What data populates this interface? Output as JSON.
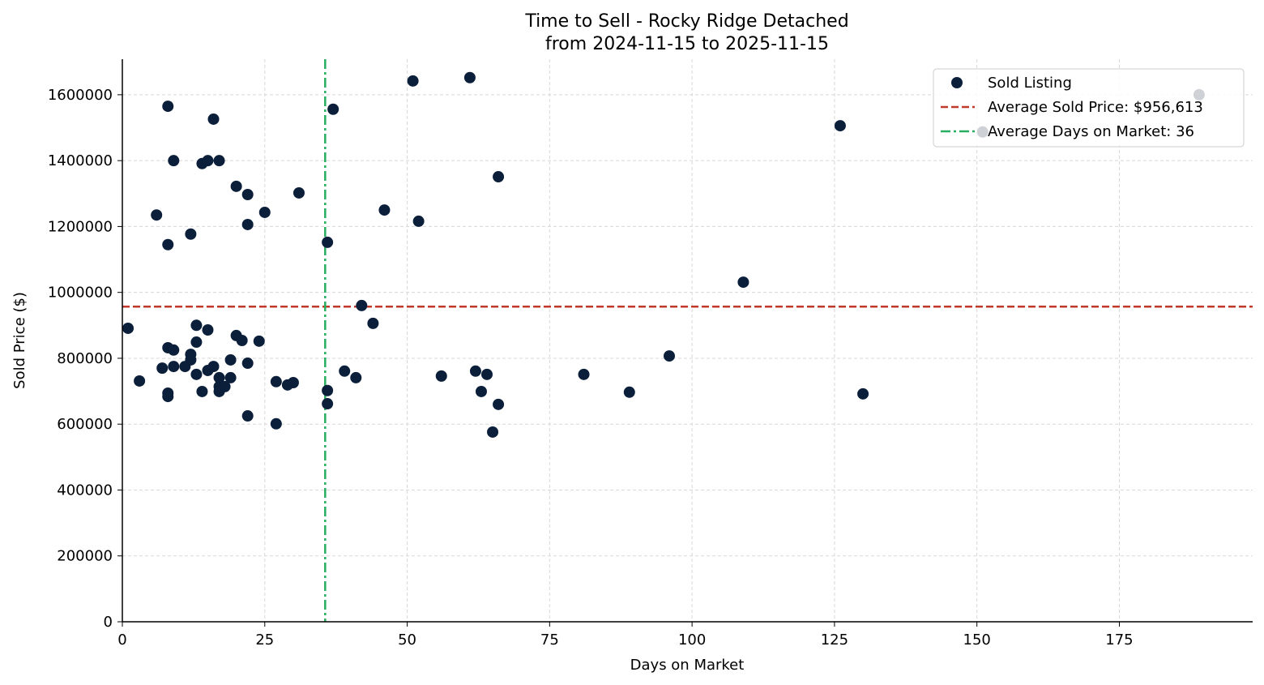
{
  "chart_data": {
    "type": "scatter",
    "title": "Time to Sell - Rocky Ridge Detached",
    "subtitle": "from 2024-11-15 to 2025-11-15",
    "xlabel": "Days on Market",
    "ylabel": "Sold Price ($)",
    "xlim": [
      0,
      198.4
    ],
    "ylim": [
      0,
      1708000
    ],
    "xticks": [
      0,
      25,
      50,
      75,
      100,
      125,
      150,
      175
    ],
    "yticks": [
      0,
      200000,
      400000,
      600000,
      800000,
      1000000,
      1200000,
      1400000,
      1600000
    ],
    "grid": true,
    "legend_position": "top-right",
    "colors": {
      "points": "#0b1f3a",
      "avg_price": "#c0392b",
      "avg_days": "#27ae60"
    },
    "series": [
      {
        "name": "Sold Listing",
        "points": [
          [
            1,
            891000
          ],
          [
            3,
            731000
          ],
          [
            6,
            1235000
          ],
          [
            8,
            1565000
          ],
          [
            8,
            1145000
          ],
          [
            9,
            1400000
          ],
          [
            7,
            770000
          ],
          [
            8,
            832000
          ],
          [
            9,
            825000
          ],
          [
            8,
            694000
          ],
          [
            8,
            684000
          ],
          [
            9,
            775000
          ],
          [
            12,
            1177000
          ],
          [
            13,
            900000
          ],
          [
            13,
            849000
          ],
          [
            12,
            812000
          ],
          [
            12,
            795000
          ],
          [
            11,
            775000
          ],
          [
            13,
            751000
          ],
          [
            14,
            699000
          ],
          [
            14,
            1391000
          ],
          [
            15,
            1400000
          ],
          [
            16,
            1526000
          ],
          [
            17,
            1400000
          ],
          [
            15,
            886000
          ],
          [
            15,
            763000
          ],
          [
            16,
            775000
          ],
          [
            17,
            741000
          ],
          [
            17,
            714000
          ],
          [
            17,
            699000
          ],
          [
            18,
            714000
          ],
          [
            19,
            795000
          ],
          [
            19,
            741000
          ],
          [
            20,
            869000
          ],
          [
            20,
            1322000
          ],
          [
            21,
            854000
          ],
          [
            22,
            1297000
          ],
          [
            22,
            1206000
          ],
          [
            22,
            785000
          ],
          [
            22,
            625000
          ],
          [
            24,
            852000
          ],
          [
            25,
            1243000
          ],
          [
            27,
            729000
          ],
          [
            27,
            601000
          ],
          [
            29,
            719000
          ],
          [
            30,
            726000
          ],
          [
            31,
            1302000
          ],
          [
            36,
            1152000
          ],
          [
            36,
            702000
          ],
          [
            36,
            662000
          ],
          [
            37,
            1556000
          ],
          [
            39,
            761000
          ],
          [
            41,
            741000
          ],
          [
            42,
            960000
          ],
          [
            44,
            906000
          ],
          [
            46,
            1250000
          ],
          [
            51,
            1642000
          ],
          [
            52,
            1216000
          ],
          [
            56,
            746000
          ],
          [
            61,
            1652000
          ],
          [
            62,
            761000
          ],
          [
            63,
            699000
          ],
          [
            64,
            751000
          ],
          [
            65,
            576000
          ],
          [
            66,
            1351000
          ],
          [
            66,
            660000
          ],
          [
            81,
            751000
          ],
          [
            89,
            697000
          ],
          [
            96,
            807000
          ],
          [
            109,
            1031000
          ],
          [
            126,
            1506000
          ],
          [
            130,
            692000
          ],
          [
            151,
            1487000
          ],
          [
            189,
            1600000
          ]
        ]
      }
    ],
    "reference_lines": [
      {
        "name": "Average Sold Price: $956,613",
        "axis": "y",
        "value": 956613,
        "style": "dashed"
      },
      {
        "name": "Average Days on Market: 36",
        "axis": "x",
        "value": 35.6,
        "style": "dashdot"
      }
    ]
  }
}
